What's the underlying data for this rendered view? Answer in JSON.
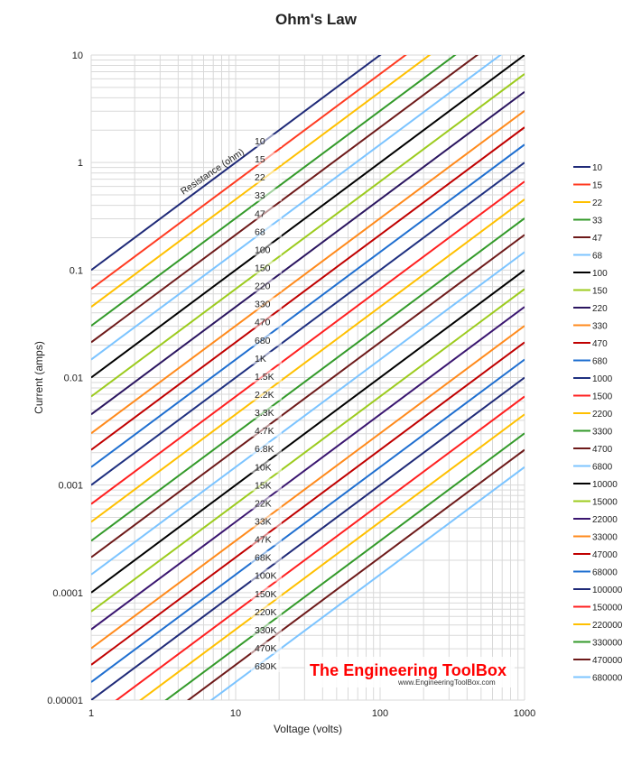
{
  "chart_data": {
    "type": "line",
    "title": "Ohm's Law",
    "xlabel": "Voltage (volts)",
    "ylabel": "Current (amps)",
    "xscale": "log",
    "yscale": "log",
    "xlim": [
      1,
      1000
    ],
    "ylim": [
      1e-05,
      10
    ],
    "x_ticks": [
      "1",
      "10",
      "100",
      "1000"
    ],
    "y_ticks": [
      "0.00001",
      "0.0001",
      "0.001",
      "0.01",
      "0.1",
      "1",
      "10"
    ],
    "grid": true,
    "legend_position": "right",
    "line_annotation_title": "Resistance (ohm)",
    "series": [
      {
        "name": "10",
        "resistance": 10,
        "label": "10",
        "color": "#1f2a78"
      },
      {
        "name": "15",
        "resistance": 15,
        "label": "15",
        "color": "#ff3b22"
      },
      {
        "name": "22",
        "resistance": 22,
        "label": "22",
        "color": "#ffc000"
      },
      {
        "name": "33",
        "resistance": 33,
        "label": "33",
        "color": "#339a2a"
      },
      {
        "name": "47",
        "resistance": 47,
        "label": "47",
        "color": "#6e1a1a"
      },
      {
        "name": "68",
        "resistance": 68,
        "label": "68",
        "color": "#7cc4ff"
      },
      {
        "name": "100",
        "resistance": 100,
        "label": "100",
        "color": "#000000"
      },
      {
        "name": "150",
        "resistance": 150,
        "label": "150",
        "color": "#9ccb1e"
      },
      {
        "name": "220",
        "resistance": 220,
        "label": "220",
        "color": "#2b1660"
      },
      {
        "name": "330",
        "resistance": 330,
        "label": "330",
        "color": "#ff8a1c"
      },
      {
        "name": "470",
        "resistance": 470,
        "label": "470",
        "color": "#c00000"
      },
      {
        "name": "680",
        "resistance": 680,
        "label": "680",
        "color": "#1f6fd0"
      },
      {
        "name": "1000",
        "resistance": 1000,
        "label": "1K",
        "color": "#1f3080"
      },
      {
        "name": "1500",
        "resistance": 1500,
        "label": "1.5K",
        "color": "#ff2020"
      },
      {
        "name": "2200",
        "resistance": 2200,
        "label": "2.2K",
        "color": "#ffc000"
      },
      {
        "name": "3300",
        "resistance": 3300,
        "label": "3.3K",
        "color": "#339a2a"
      },
      {
        "name": "4700",
        "resistance": 4700,
        "label": "4.7K",
        "color": "#6e1a1a"
      },
      {
        "name": "6800",
        "resistance": 6800,
        "label": "6.8K",
        "color": "#7cc4ff"
      },
      {
        "name": "10000",
        "resistance": 10000,
        "label": "10K",
        "color": "#000000"
      },
      {
        "name": "15000",
        "resistance": 15000,
        "label": "15K",
        "color": "#9ccb1e"
      },
      {
        "name": "22000",
        "resistance": 22000,
        "label": "22K",
        "color": "#3a1670"
      },
      {
        "name": "33000",
        "resistance": 33000,
        "label": "33K",
        "color": "#ff8a1c"
      },
      {
        "name": "47000",
        "resistance": 47000,
        "label": "47K",
        "color": "#c00000"
      },
      {
        "name": "68000",
        "resistance": 68000,
        "label": "68K",
        "color": "#1f6fd0"
      },
      {
        "name": "100000",
        "resistance": 100000,
        "label": "100K",
        "color": "#1f2a78"
      },
      {
        "name": "150000",
        "resistance": 150000,
        "label": "150K",
        "color": "#ff2020"
      },
      {
        "name": "220000",
        "resistance": 220000,
        "label": "220K",
        "color": "#ffc000"
      },
      {
        "name": "330000",
        "resistance": 330000,
        "label": "330K",
        "color": "#339a2a"
      },
      {
        "name": "470000",
        "resistance": 470000,
        "label": "470K",
        "color": "#6e1a1a"
      },
      {
        "name": "680000",
        "resistance": 680000,
        "label": "680K",
        "color": "#7cc4ff"
      }
    ]
  },
  "watermark": {
    "brand": "The Engineering ToolBox",
    "url": "www.EngineeringToolBox.com",
    "brand_color": "#ff0000"
  }
}
